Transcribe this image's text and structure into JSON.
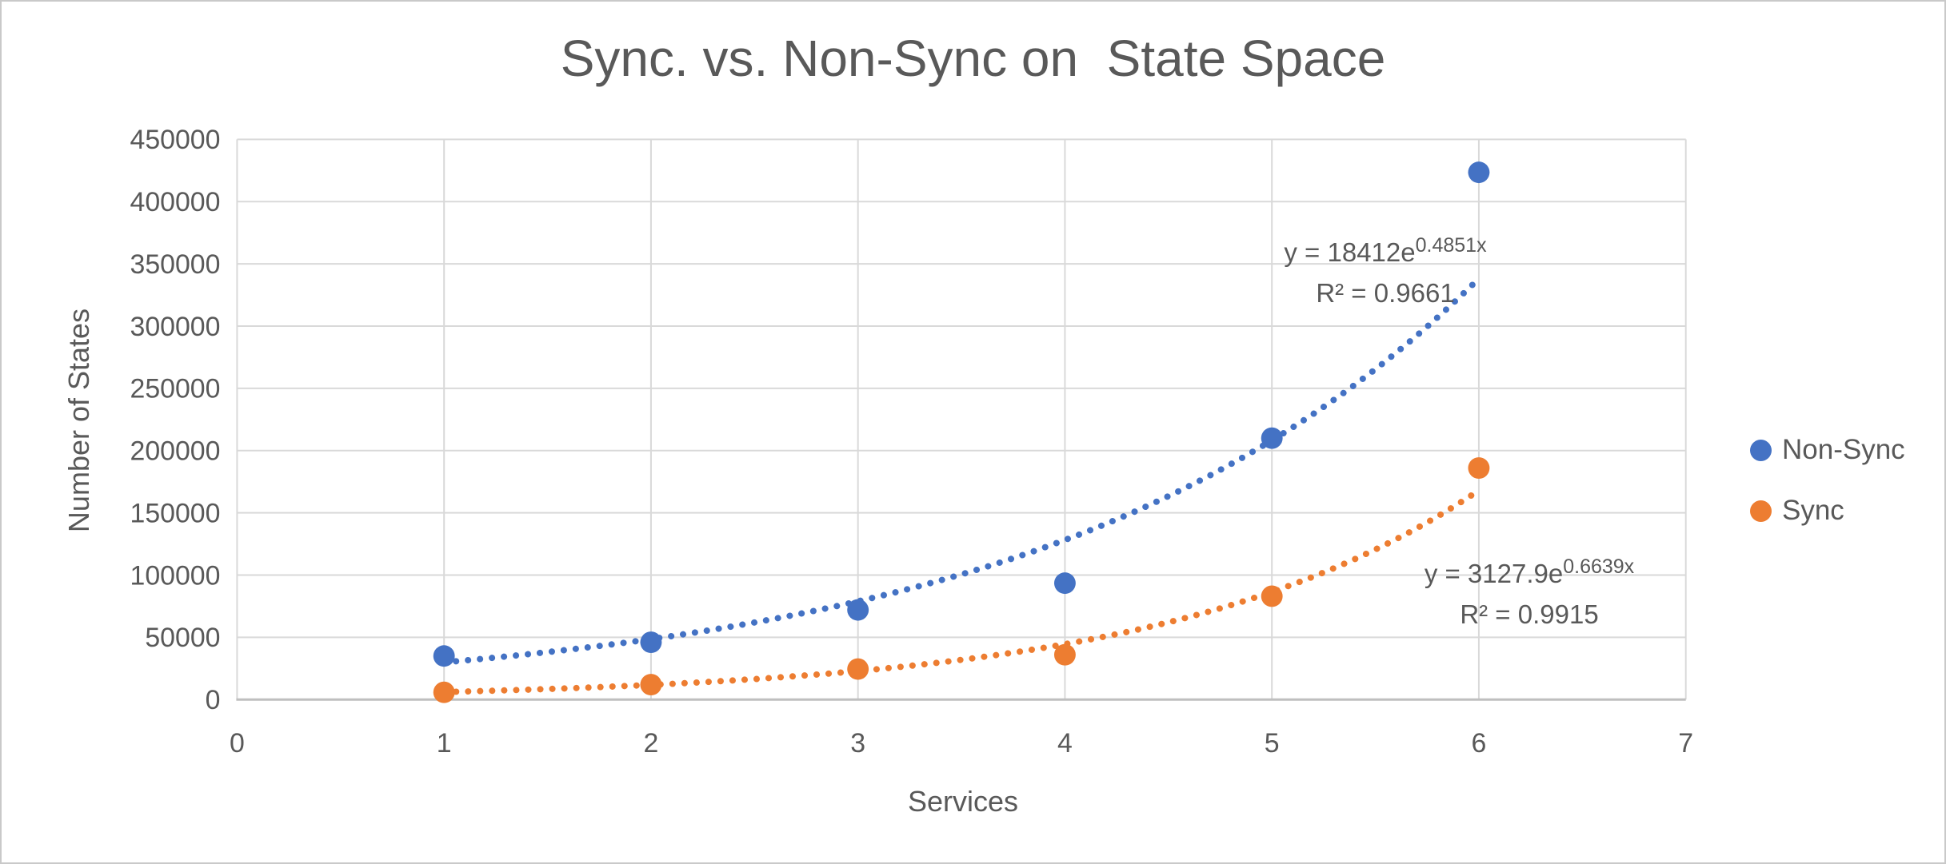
{
  "chart_data": {
    "type": "scatter",
    "title": "Sync. vs. Non-Sync on  State Space",
    "xlabel": "Services",
    "ylabel": "Number of States",
    "xlim": [
      0,
      7
    ],
    "ylim": [
      0,
      450000
    ],
    "x_ticks": [
      0,
      1,
      2,
      3,
      4,
      5,
      6,
      7
    ],
    "y_ticks": [
      0,
      50000,
      100000,
      150000,
      200000,
      250000,
      300000,
      350000,
      400000,
      450000
    ],
    "grid": true,
    "legend_position": "right",
    "series": [
      {
        "name": "Non-Sync",
        "color": "#4472C4",
        "x": [
          1,
          2,
          3,
          4,
          5,
          6
        ],
        "y": [
          35000,
          46000,
          72000,
          93500,
          210000,
          423500
        ],
        "trendline": {
          "type": "exponential",
          "a": 18412,
          "b": 0.4851,
          "equation_base": "y = 18412e",
          "equation_exponent": "0.4851x",
          "r2": "R² = 0.9661"
        }
      },
      {
        "name": "Sync",
        "color": "#ED7D31",
        "x": [
          1,
          2,
          3,
          4,
          5,
          6
        ],
        "y": [
          5800,
          12000,
          24500,
          36000,
          83000,
          186000
        ],
        "trendline": {
          "type": "exponential",
          "a": 3127.9,
          "b": 0.6639,
          "equation_base": "y = 3127.9e",
          "equation_exponent": "0.6639x",
          "r2": "R² = 0.9915"
        }
      }
    ],
    "colors": {
      "gridline": "#D9D9D9",
      "axis_line": "#BFBFBF",
      "text": "#595959"
    }
  }
}
